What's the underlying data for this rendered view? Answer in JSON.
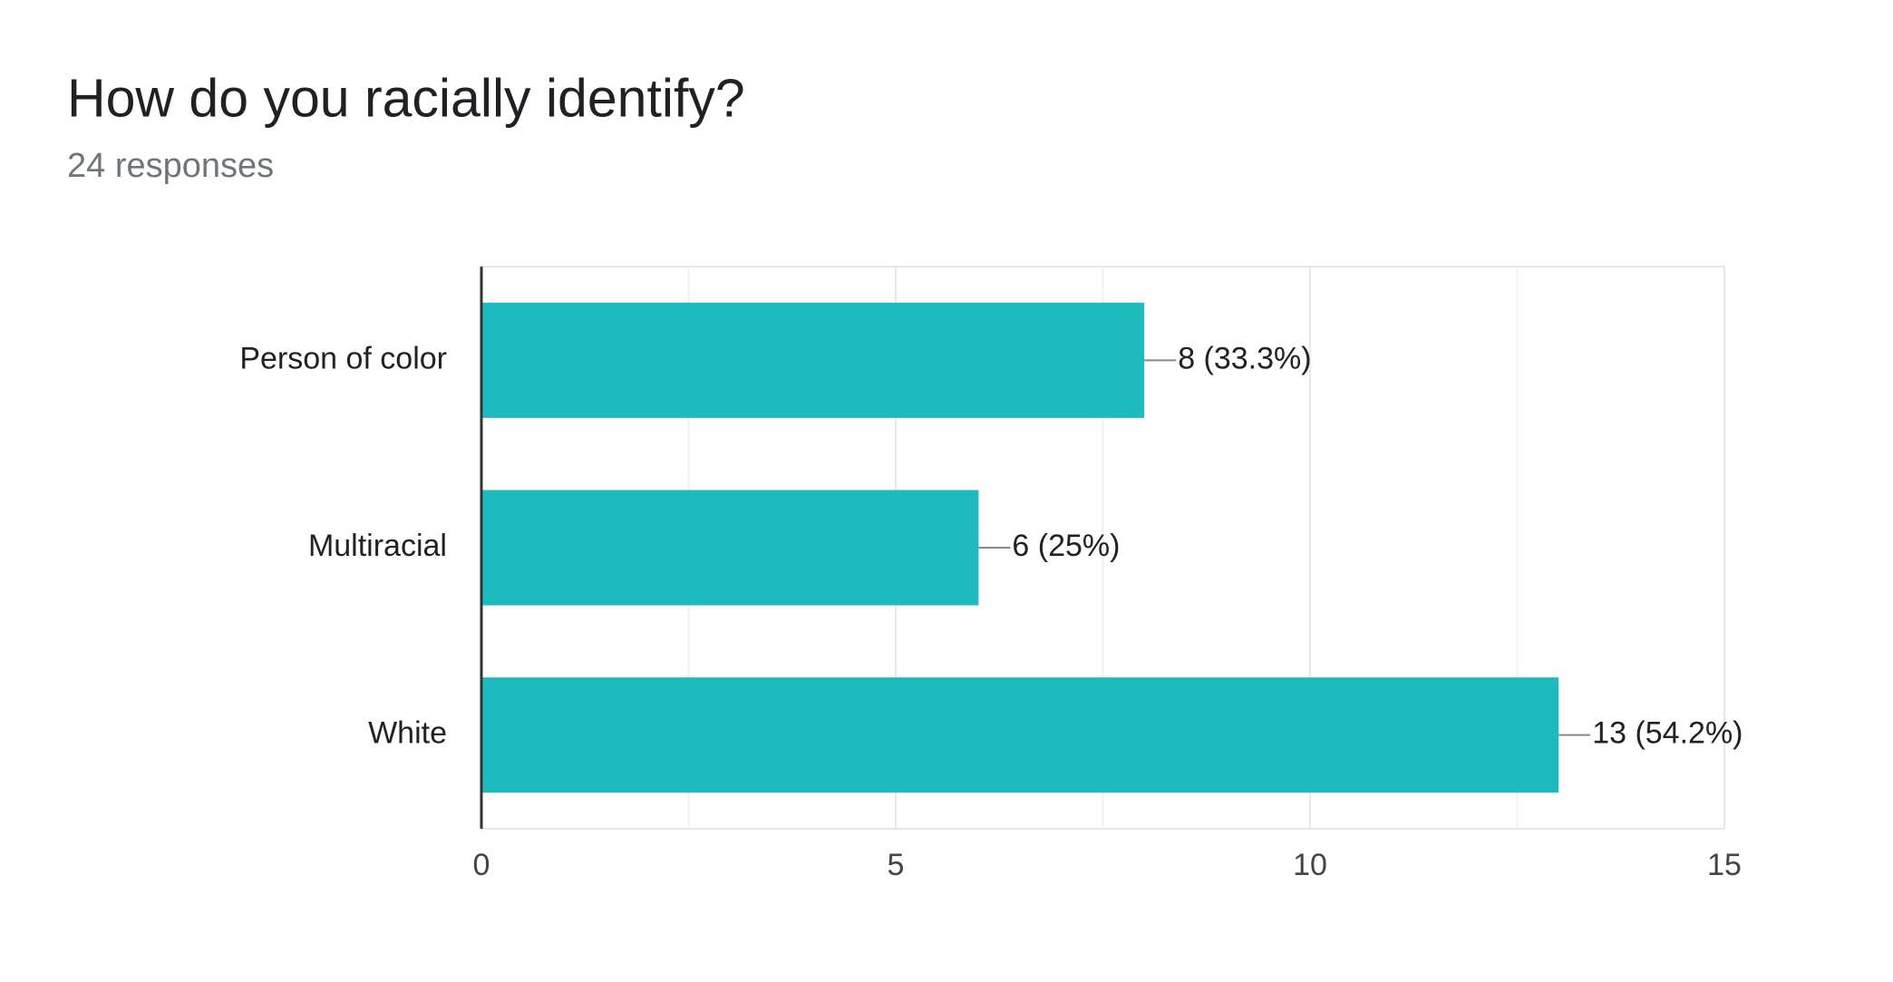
{
  "chart_data": {
    "type": "bar",
    "orientation": "horizontal",
    "title": "How do you racially identify?",
    "subtitle": "24 responses",
    "categories": [
      "Person of color",
      "Multiracial",
      "White"
    ],
    "values": [
      8,
      6,
      13
    ],
    "value_labels": [
      "8 (33.3%)",
      "6 (25%)",
      "13 (54.2%)"
    ],
    "color": "#1dbbbe",
    "xlim": [
      0,
      15
    ],
    "xticks": [
      0,
      5,
      10,
      15
    ],
    "x_minor_ticks": [
      2.5,
      7.5,
      12.5
    ],
    "grid": true
  }
}
